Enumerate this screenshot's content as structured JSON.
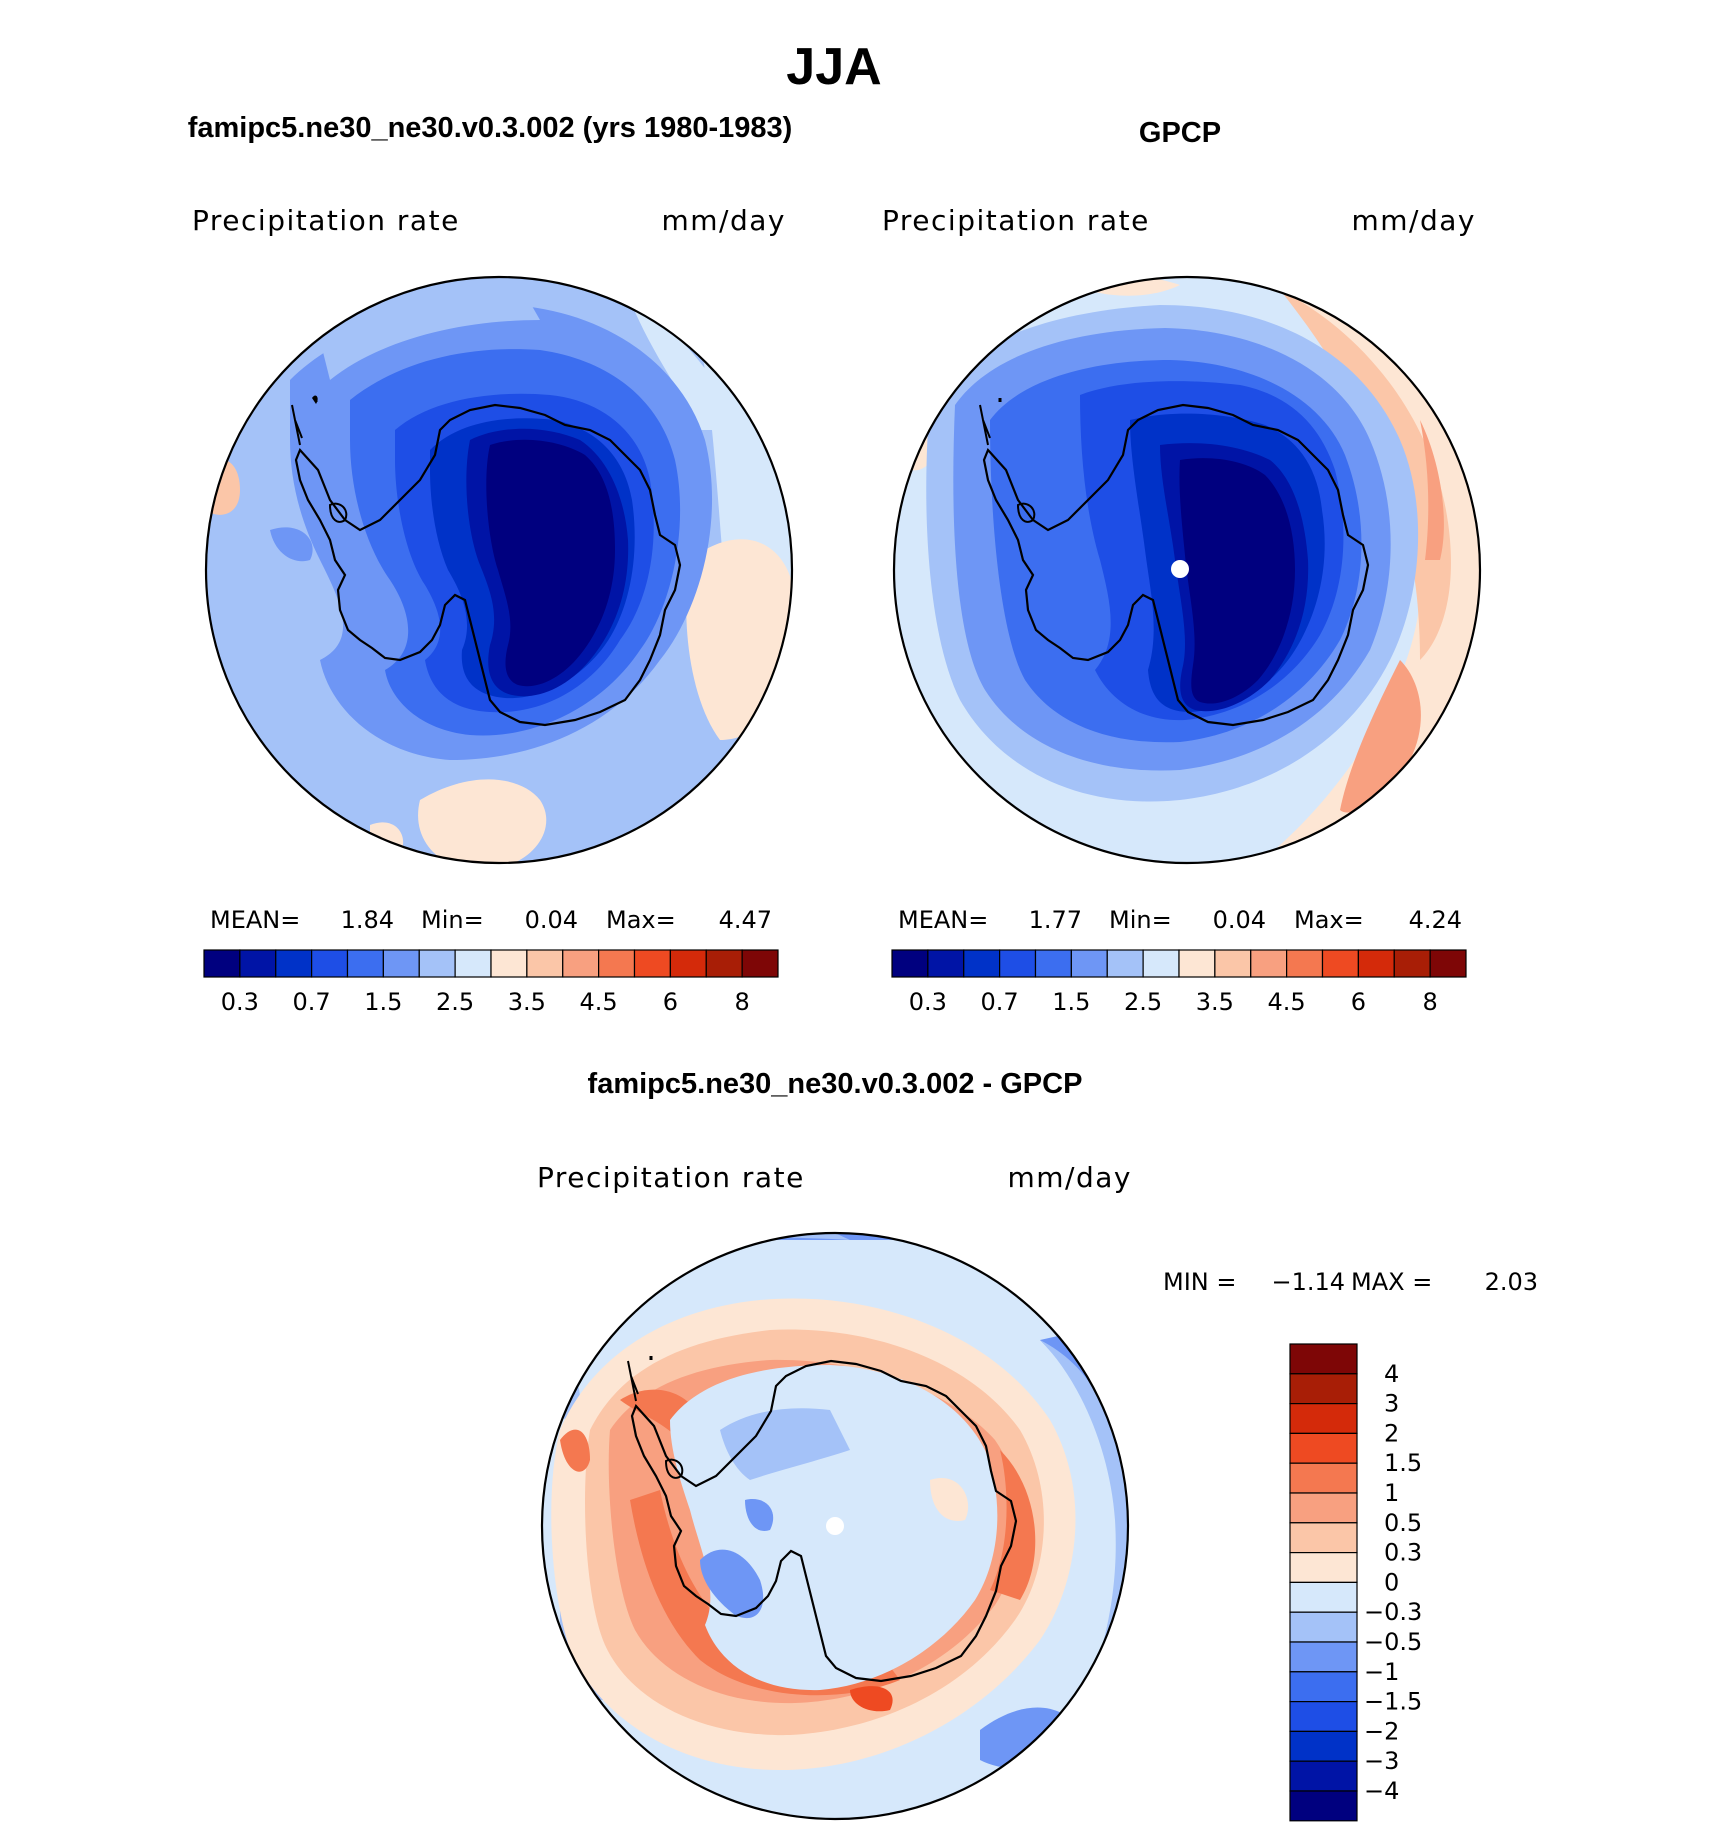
{
  "figure": {
    "season": "JJA",
    "variable": "Precipitation rate",
    "units": "mm/day"
  },
  "panels": [
    {
      "id": "model",
      "title": "famipc5.ne30_ne30.v0.3.002 (yrs 1980-1983)",
      "variable": "Precipitation rate",
      "units": "mm/day",
      "stats": {
        "mean_label": "MEAN=",
        "mean_value": "1.84",
        "min_label": "Min=",
        "min_value": "0.04",
        "max_label": "Max=",
        "max_value": "4.47"
      }
    },
    {
      "id": "obs",
      "title": "GPCP",
      "variable": "Precipitation rate",
      "units": "mm/day",
      "stats": {
        "mean_label": "MEAN=",
        "mean_value": "1.77",
        "min_label": "Min=",
        "min_value": "0.04",
        "max_label": "Max=",
        "max_value": "4.24"
      }
    },
    {
      "id": "diff",
      "title": "famipc5.ne30_ne30.v0.3.002 - GPCP",
      "variable": "Precipitation rate",
      "units": "mm/day",
      "stats": {
        "min_label": "MIN =",
        "min_value": "−1.14",
        "max_label": "MAX =",
        "max_value": "2.03"
      }
    }
  ],
  "colorbars": {
    "mean": {
      "colors": [
        "#00007f",
        "#0014a6",
        "#0032c8",
        "#1e4ee6",
        "#3c6ef0",
        "#6e96f5",
        "#a4c2f8",
        "#d6e8fb",
        "#fde6d4",
        "#fbc6a8",
        "#f8a080",
        "#f47850",
        "#ee4a22",
        "#d42a0a",
        "#a81e06",
        "#7e0606"
      ],
      "tick_labels": [
        "0.3",
        "0.7",
        "1.5",
        "2.5",
        "3.5",
        "4.5",
        "6",
        "8"
      ]
    },
    "diff": {
      "colors": [
        "#7e0606",
        "#a81e06",
        "#d42a0a",
        "#ee4a22",
        "#f47850",
        "#f8a080",
        "#fbc6a8",
        "#fde6d4",
        "#d6e8fb",
        "#a4c2f8",
        "#6e96f5",
        "#3c6ef0",
        "#1e4ee6",
        "#0032c8",
        "#0014a6",
        "#00007f"
      ],
      "tick_labels": [
        "4",
        "3",
        "2",
        "1.5",
        "1",
        "0.5",
        "0.3",
        "0",
        "−0.3",
        "−0.5",
        "−1",
        "−1.5",
        "−2",
        "−3",
        "−4"
      ]
    }
  }
}
